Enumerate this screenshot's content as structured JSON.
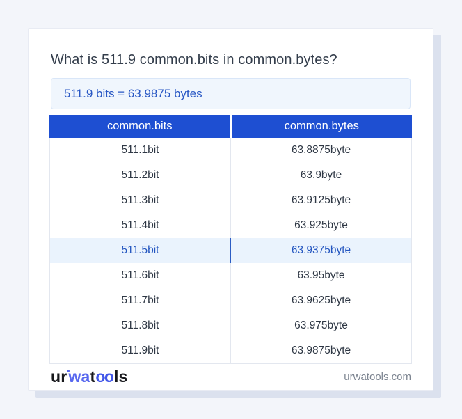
{
  "page": {
    "title": "What is 511.9 common.bits in common.bytes?",
    "result": "511.9 bits = 63.9875 bytes"
  },
  "table": {
    "headers": [
      "common.bits",
      "common.bytes"
    ],
    "rows": [
      {
        "bits": "511.1bit",
        "bytes": "63.8875byte",
        "highlight": false
      },
      {
        "bits": "511.2bit",
        "bytes": "63.9byte",
        "highlight": false
      },
      {
        "bits": "511.3bit",
        "bytes": "63.9125byte",
        "highlight": false
      },
      {
        "bits": "511.4bit",
        "bytes": "63.925byte",
        "highlight": false
      },
      {
        "bits": "511.5bit",
        "bytes": "63.9375byte",
        "highlight": true
      },
      {
        "bits": "511.6bit",
        "bytes": "63.95byte",
        "highlight": false
      },
      {
        "bits": "511.7bit",
        "bytes": "63.9625byte",
        "highlight": false
      },
      {
        "bits": "511.8bit",
        "bytes": "63.975byte",
        "highlight": false
      },
      {
        "bits": "511.9bit",
        "bytes": "63.9875byte",
        "highlight": false
      }
    ]
  },
  "footer": {
    "logo": {
      "segment1": "ur",
      "segment2": "wa",
      "segment3": "t",
      "segment4": "oo",
      "segment5": "ls"
    },
    "domain": "urwatools.com"
  },
  "colors": {
    "page_bg": "#f3f5fa",
    "card_shadow": "#dbe1ee",
    "header_bg": "#1e4fd2",
    "header_text": "#ffffff",
    "result_bg": "#f0f6fd",
    "result_border": "#d9e6f8",
    "result_text": "#2857c4",
    "title_text": "#333d4b",
    "cell_text": "#2e3744",
    "table_border": "#e3e7ef",
    "highlight_bg": "#eaf3fd",
    "highlight_text": "#2456c0",
    "highlight_divider": "#2b5cc4",
    "logo_dark": "#17181c",
    "logo_blue_wa": "#5868ef",
    "logo_blue_oo": "#4257e9",
    "domain_text": "#7d8591"
  }
}
